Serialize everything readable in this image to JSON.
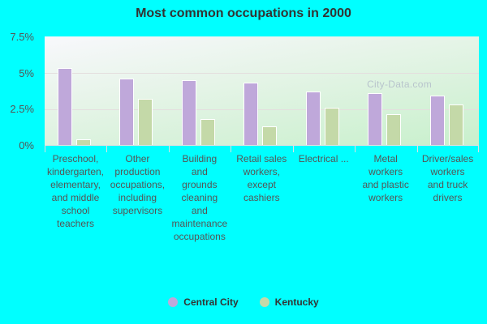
{
  "title": "Most common occupations in 2000",
  "watermark": "City-Data.com",
  "y_ticks": [
    "7.5%",
    "5%",
    "2.5%",
    "0%"
  ],
  "legend": [
    {
      "label": "Central City",
      "color": "#bfa8da"
    },
    {
      "label": "Kentucky",
      "color": "#c4d9a8"
    }
  ],
  "categories": [
    "Preschool,\nkindergarten,\nelementary,\nand middle\nschool\nteachers",
    "Other\nproduction\noccupations,\nincluding\nsupervisors",
    "Building\nand\ngrounds\ncleaning\nand\nmaintenance\noccupations",
    "Retail sales\nworkers,\nexcept\ncashiers",
    "Electrical ...",
    "Metal\nworkers\nand plastic\nworkers",
    "Driver/sales\nworkers\nand truck\ndrivers"
  ],
  "chart_data": {
    "type": "bar",
    "title": "Most common occupations in 2000",
    "xlabel": "",
    "ylabel": "",
    "ylim": [
      0,
      7.5
    ],
    "y_tick_labels": [
      "0%",
      "2.5%",
      "5%",
      "7.5%"
    ],
    "grid": true,
    "legend_position": "bottom",
    "categories": [
      "Preschool, kindergarten, elementary, and middle school teachers",
      "Other production occupations, including supervisors",
      "Building and grounds cleaning and maintenance occupations",
      "Retail sales workers, except cashiers",
      "Electrical ...",
      "Metal workers and plastic workers",
      "Driver/sales workers and truck drivers"
    ],
    "series": [
      {
        "name": "Central City",
        "color": "#bfa8da",
        "values": [
          5.3,
          4.6,
          4.5,
          4.3,
          3.7,
          3.6,
          3.4
        ]
      },
      {
        "name": "Kentucky",
        "color": "#c4d9a8",
        "values": [
          0.4,
          3.2,
          1.8,
          1.3,
          2.6,
          2.1,
          2.8
        ]
      }
    ]
  }
}
